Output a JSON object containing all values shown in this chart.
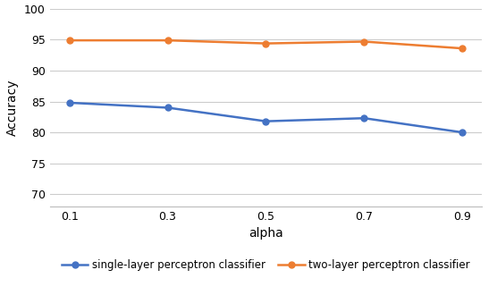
{
  "x": [
    0.1,
    0.3,
    0.5,
    0.7,
    0.9
  ],
  "single_layer": [
    84.8,
    84.0,
    81.8,
    82.3,
    80.0
  ],
  "two_layer": [
    94.9,
    94.9,
    94.4,
    94.7,
    93.6
  ],
  "single_layer_color": "#4472C4",
  "two_layer_color": "#ED7D31",
  "single_layer_label": "single-layer perceptron classifier",
  "two_layer_label": "two-layer perceptron classifier",
  "xlabel": "alpha",
  "ylabel": "Accuracy",
  "ylim": [
    68,
    100
  ],
  "yticks": [
    70,
    75,
    80,
    85,
    90,
    95,
    100
  ],
  "xticks": [
    0.1,
    0.3,
    0.5,
    0.7,
    0.9
  ],
  "marker": "o",
  "linewidth": 1.8,
  "markersize": 5,
  "grid_color": "#CCCCCC",
  "background_color": "#FFFFFF"
}
